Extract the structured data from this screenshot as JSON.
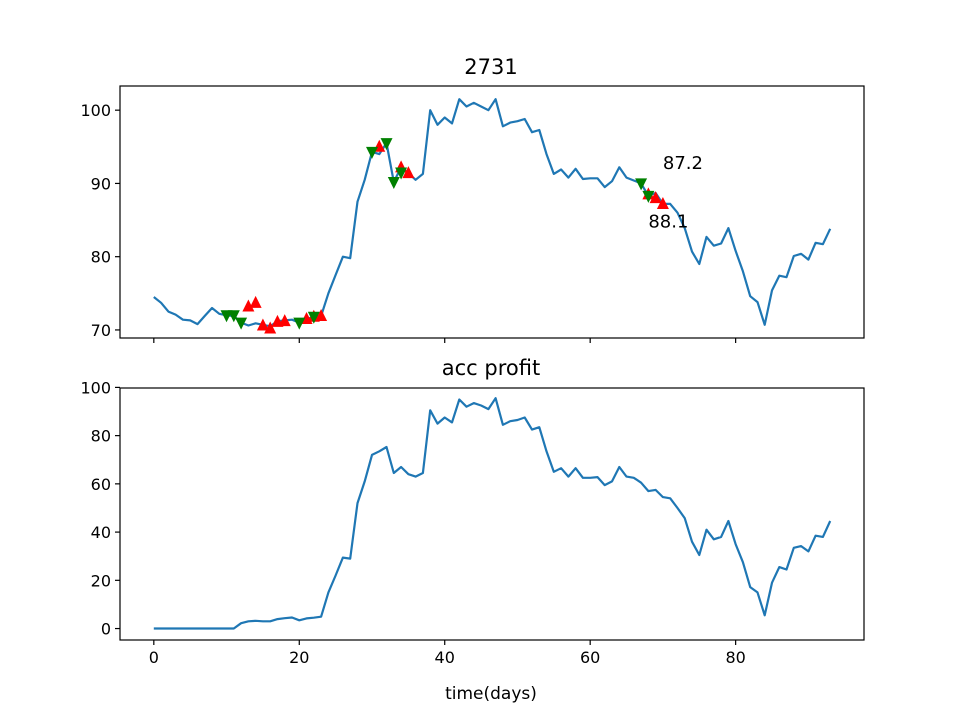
{
  "colors": {
    "line": "#1f77b4",
    "buy_marker": "#ff0000",
    "sell_marker": "#008000",
    "axes": "#000000",
    "background": "#ffffff"
  },
  "chart_data": [
    {
      "type": "line",
      "title": "2731",
      "xlabel": "",
      "ylabel": "",
      "xlim": [
        -4.65,
        97.65
      ],
      "ylim": [
        68.9,
        103.3
      ],
      "xticks": [
        0,
        20,
        40,
        60,
        80
      ],
      "show_xtick_labels": false,
      "yticks": [
        70,
        80,
        90,
        100
      ],
      "ytick_labels": [
        "70",
        "80",
        "90",
        "100"
      ],
      "grid": false,
      "series": [
        {
          "x": [
            0,
            1,
            2,
            3,
            4,
            5,
            6,
            7,
            8,
            9,
            10,
            11,
            12,
            13,
            14,
            15,
            16,
            17,
            18,
            19,
            20,
            21,
            22,
            23,
            24,
            25,
            26,
            27,
            28,
            29,
            30,
            31,
            32,
            33,
            34,
            35,
            36,
            37,
            38,
            39,
            40,
            41,
            42,
            43,
            44,
            45,
            46,
            47,
            48,
            49,
            50,
            51,
            52,
            53,
            54,
            55,
            56,
            57,
            58,
            59,
            60,
            61,
            62,
            63,
            64,
            65,
            66,
            67,
            68,
            69,
            70,
            71,
            72,
            73,
            74,
            75,
            76,
            77,
            78,
            79,
            80,
            81,
            82,
            83,
            84,
            85,
            86,
            87,
            88,
            89,
            90,
            91,
            92,
            93
          ],
          "values": [
            74.5,
            73.7,
            72.5,
            72.1,
            71.4,
            71.3,
            70.8,
            71.9,
            73.0,
            72.2,
            72.0,
            71.9,
            71.0,
            70.6,
            70.9,
            70.7,
            70.5,
            71.2,
            71.3,
            71.4,
            71.0,
            71.5,
            71.8,
            71.9,
            75.0,
            77.5,
            80.0,
            79.8,
            87.5,
            90.5,
            94.3,
            94.0,
            95.5,
            90.2,
            92.2,
            91.4,
            90.5,
            91.3,
            100.0,
            98.0,
            99.0,
            98.2,
            101.5,
            100.5,
            101.0,
            100.5,
            100.0,
            101.5,
            97.8,
            98.3,
            98.5,
            98.8,
            97.0,
            97.3,
            94.0,
            91.3,
            91.9,
            90.8,
            92.0,
            90.6,
            90.7,
            90.7,
            89.5,
            90.3,
            92.2,
            90.8,
            90.4,
            90.0,
            88.3,
            88.7,
            87.2,
            87.2,
            86.0,
            83.9,
            80.7,
            79.0,
            82.7,
            81.5,
            81.8,
            83.9,
            80.8,
            78.0,
            74.6,
            73.8,
            70.7,
            75.4,
            77.4,
            77.2,
            80.1,
            80.4,
            79.6,
            81.9,
            81.7,
            83.8
          ]
        }
      ],
      "buy_markers": {
        "x": [
          13,
          14,
          15,
          16,
          17,
          18,
          21,
          22,
          23,
          31,
          34,
          35,
          68,
          69,
          70
        ],
        "values": [
          73.2,
          73.7,
          70.6,
          70.2,
          71.1,
          71.2,
          71.5,
          71.8,
          71.9,
          95.0,
          92.2,
          91.4,
          88.5,
          88.0,
          87.2
        ]
      },
      "sell_markers": {
        "x": [
          10,
          11,
          12,
          20,
          22,
          30,
          32,
          33,
          34,
          67,
          68
        ],
        "values": [
          72.0,
          72.0,
          71.0,
          71.0,
          71.8,
          94.3,
          95.5,
          90.2,
          91.5,
          90.0,
          88.3
        ]
      },
      "annotations": [
        {
          "text": "87.2",
          "x": 70.0,
          "y": 92.0,
          "color": "#ff0000"
        },
        {
          "text": "88.1",
          "x": 68.0,
          "y": 84.0,
          "color": "#008000"
        }
      ]
    },
    {
      "type": "line",
      "title": "acc profit",
      "xlabel": "time(days)",
      "ylabel": "",
      "xlim": [
        -4.65,
        97.65
      ],
      "ylim": [
        -4.75,
        99.75
      ],
      "xticks": [
        0,
        20,
        40,
        60,
        80
      ],
      "xtick_labels": [
        "0",
        "20",
        "40",
        "60",
        "80"
      ],
      "yticks": [
        0,
        20,
        40,
        60,
        80,
        100
      ],
      "ytick_labels": [
        "0",
        "20",
        "40",
        "60",
        "80",
        "100"
      ],
      "grid": false,
      "series": [
        {
          "x": [
            0,
            1,
            2,
            3,
            4,
            5,
            6,
            7,
            8,
            9,
            10,
            11,
            12,
            13,
            14,
            15,
            16,
            17,
            18,
            19,
            20,
            21,
            22,
            23,
            24,
            25,
            26,
            27,
            28,
            29,
            30,
            31,
            32,
            33,
            34,
            35,
            36,
            37,
            38,
            39,
            40,
            41,
            42,
            43,
            44,
            45,
            46,
            47,
            48,
            49,
            50,
            51,
            52,
            53,
            54,
            55,
            56,
            57,
            58,
            59,
            60,
            61,
            62,
            63,
            64,
            65,
            66,
            67,
            68,
            69,
            70,
            71,
            72,
            73,
            74,
            75,
            76,
            77,
            78,
            79,
            80,
            81,
            82,
            83,
            84,
            85,
            86,
            87,
            88,
            89,
            90,
            91,
            92,
            93
          ],
          "values": [
            0,
            0,
            0,
            0,
            0,
            0,
            0,
            0,
            0,
            0,
            0,
            0,
            2.2,
            3.0,
            3.2,
            3.0,
            3.0,
            3.9,
            4.3,
            4.6,
            3.4,
            4.2,
            4.5,
            4.9,
            15.0,
            22.0,
            29.4,
            29.0,
            52.0,
            61.0,
            72.0,
            73.5,
            75.3,
            64.5,
            67.0,
            64.0,
            63.0,
            64.5,
            90.5,
            85.0,
            87.5,
            85.5,
            95.0,
            92.0,
            93.5,
            92.5,
            91.0,
            95.5,
            84.5,
            86.0,
            86.5,
            87.5,
            82.5,
            83.5,
            73.5,
            65.0,
            66.5,
            63.0,
            66.5,
            62.5,
            62.5,
            62.8,
            59.5,
            61.0,
            67.0,
            63.0,
            62.5,
            60.5,
            57.0,
            57.5,
            54.5,
            54.0,
            50.0,
            45.8,
            36.0,
            30.5,
            41.0,
            37.0,
            38.0,
            44.6,
            35.0,
            27.5,
            17.2,
            15.0,
            5.5,
            19.0,
            25.5,
            24.5,
            33.5,
            34.2,
            32.0,
            38.5,
            38.0,
            44.6
          ]
        }
      ]
    }
  ]
}
